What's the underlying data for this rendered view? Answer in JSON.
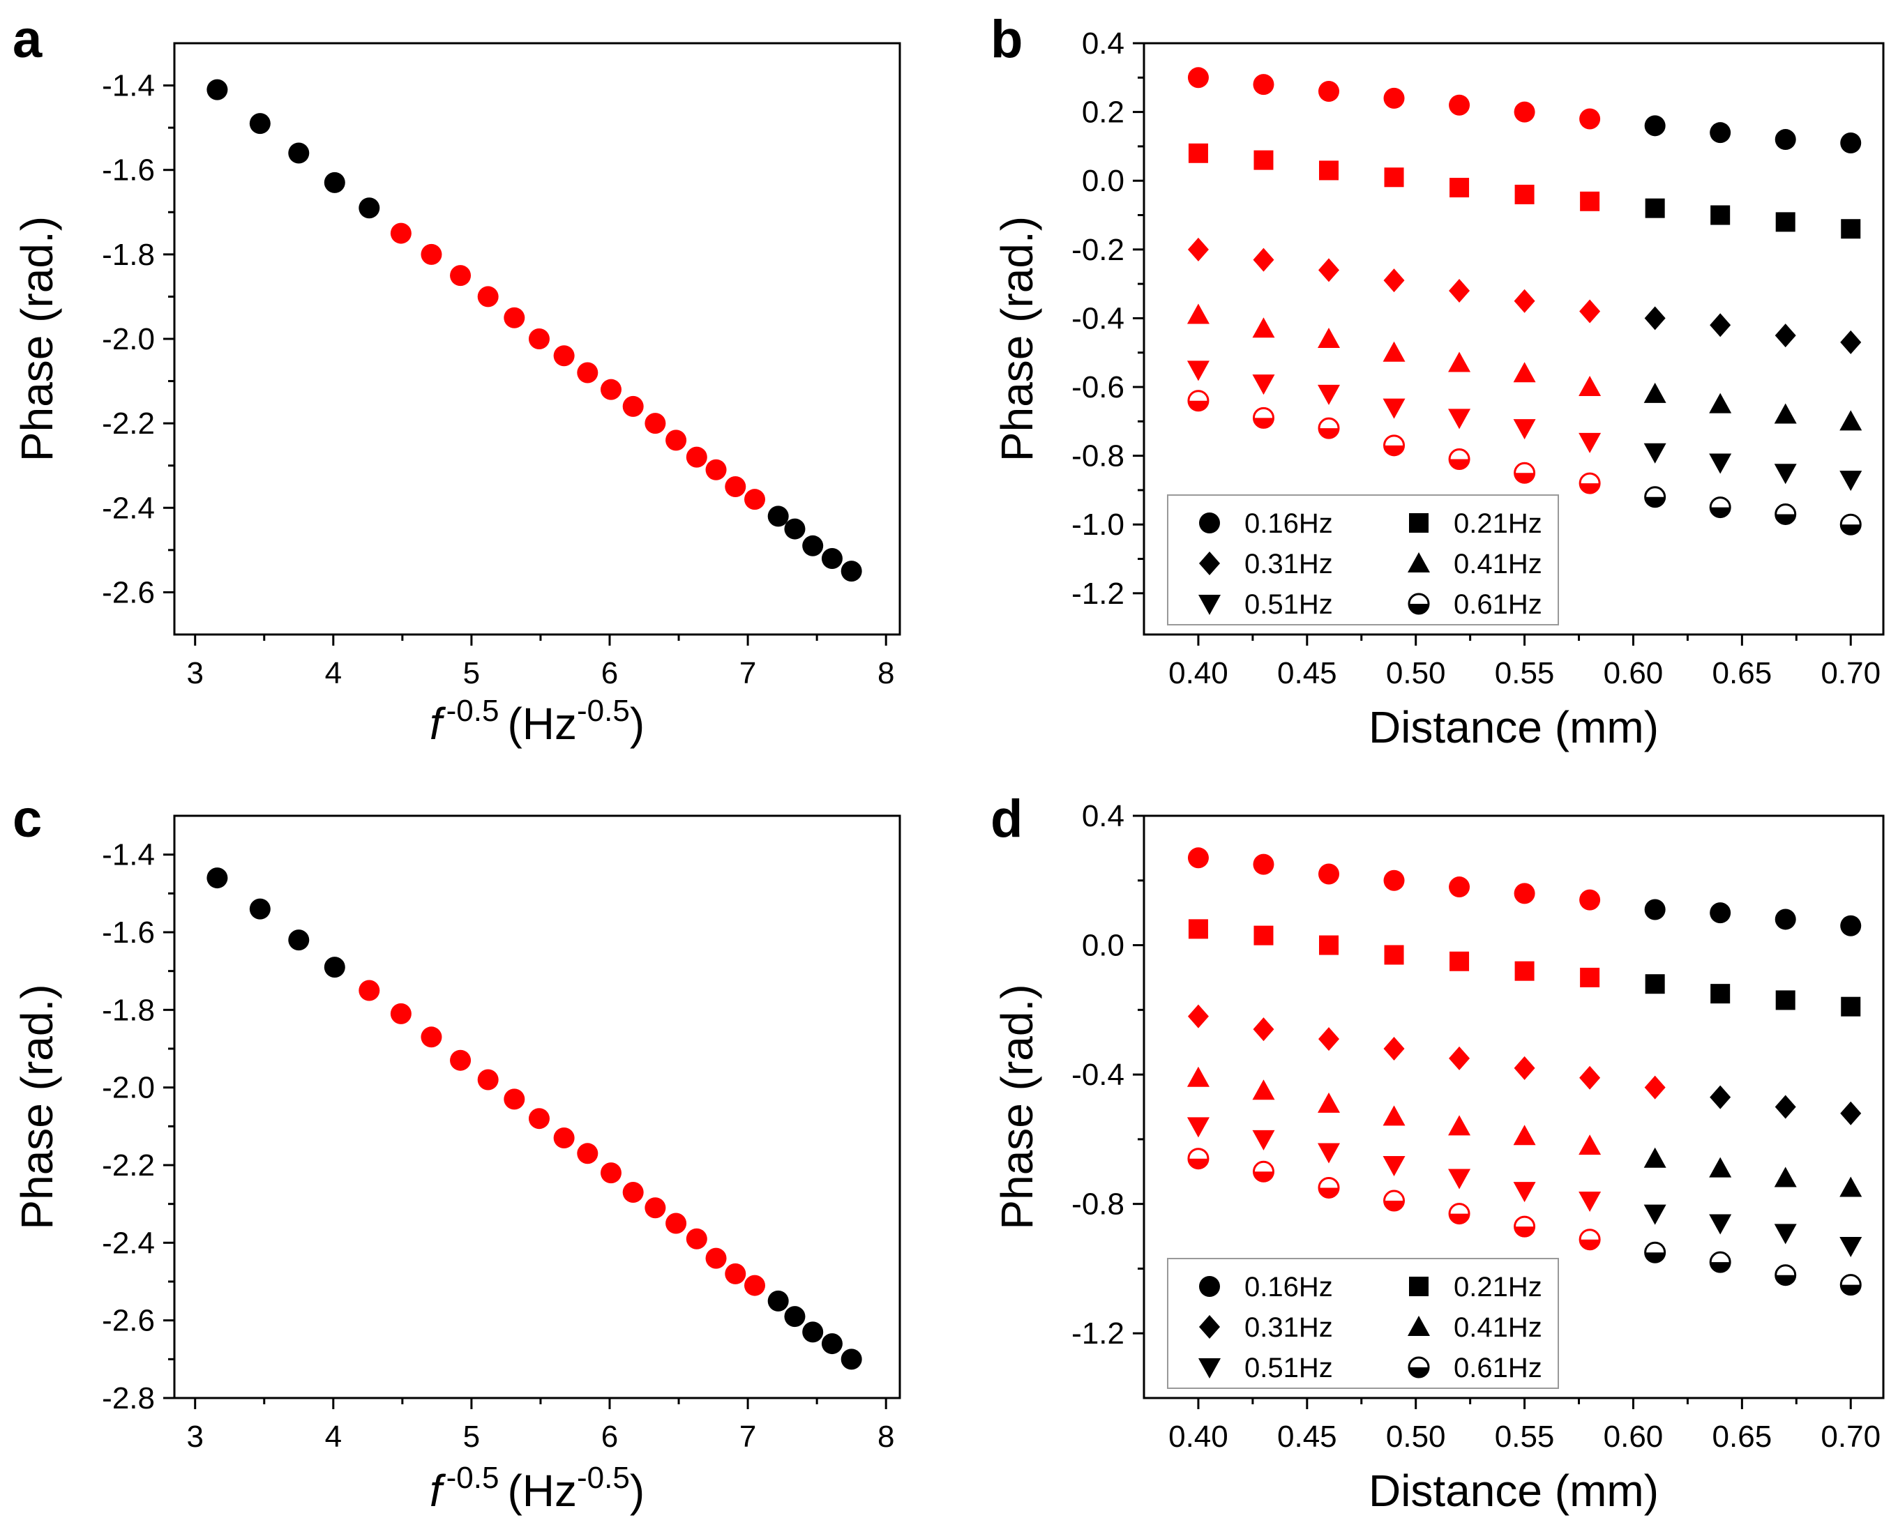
{
  "figure": {
    "colors": {
      "fixed": "#000000",
      "fitted": "#ff0000",
      "background": "#ffffff"
    }
  },
  "chart_data": [
    {
      "panel": "a",
      "type": "scatter",
      "xlabel_base": "f",
      "xlabel_exp": "-0.5",
      "xlabel_unit": "Hz",
      "xlabel_unit_exp": "-0.5",
      "ylabel": "Phase (rad.)",
      "xlim": [
        2.85,
        8.1
      ],
      "ylim": [
        -2.7,
        -1.3
      ],
      "xticks": [
        3,
        4,
        5,
        6,
        7,
        8
      ],
      "yticks": [
        -1.4,
        -1.6,
        -1.8,
        -2.0,
        -2.2,
        -2.4,
        -2.6
      ],
      "x": [
        3.16,
        3.47,
        3.75,
        4.01,
        4.26,
        4.49,
        4.71,
        4.92,
        5.12,
        5.31,
        5.49,
        5.67,
        5.84,
        6.01,
        6.17,
        6.33,
        6.48,
        6.63,
        6.77,
        6.91,
        7.05,
        7.22,
        7.34,
        7.47,
        7.61,
        7.75
      ],
      "y": [
        -1.41,
        -1.49,
        -1.56,
        -1.63,
        -1.69,
        -1.75,
        -1.8,
        -1.85,
        -1.9,
        -1.95,
        -2.0,
        -2.04,
        -2.08,
        -2.12,
        -2.16,
        -2.2,
        -2.24,
        -2.28,
        -2.31,
        -2.35,
        -2.38,
        -2.42,
        -2.45,
        -2.49,
        -2.52,
        -2.55
      ],
      "colors": [
        "fixed",
        "fixed",
        "fixed",
        "fixed",
        "fixed",
        "fitted",
        "fitted",
        "fitted",
        "fitted",
        "fitted",
        "fitted",
        "fitted",
        "fitted",
        "fitted",
        "fitted",
        "fitted",
        "fitted",
        "fitted",
        "fitted",
        "fitted",
        "fitted",
        "fixed",
        "fixed",
        "fixed",
        "fixed",
        "fixed"
      ]
    },
    {
      "panel": "b",
      "type": "scatter",
      "xlabel": "Distance (mm)",
      "ylabel": "Phase (rad.)",
      "xlim": [
        0.375,
        0.715
      ],
      "ylim": [
        -1.32,
        0.4
      ],
      "xticks": [
        "0.40",
        "0.45",
        "0.50",
        "0.55",
        "0.60",
        "0.65",
        "0.70"
      ],
      "yticks": [
        "0.4",
        "0.2",
        "0.0",
        "-0.2",
        "-0.4",
        "-0.6",
        "-0.8",
        "-1.0",
        "-1.2"
      ],
      "x": [
        0.4,
        0.43,
        0.46,
        0.49,
        0.52,
        0.55,
        0.58,
        0.61,
        0.64,
        0.67,
        0.7
      ],
      "fitted_count": 7,
      "series": [
        {
          "name": "0.16Hz",
          "marker": "circle",
          "values": [
            0.3,
            0.28,
            0.26,
            0.24,
            0.22,
            0.2,
            0.18,
            0.16,
            0.14,
            0.12,
            0.11
          ]
        },
        {
          "name": "0.21Hz",
          "marker": "square",
          "values": [
            0.08,
            0.06,
            0.03,
            0.01,
            -0.02,
            -0.04,
            -0.06,
            -0.08,
            -0.1,
            -0.12,
            -0.14
          ]
        },
        {
          "name": "0.31Hz",
          "marker": "diamond",
          "values": [
            -0.2,
            -0.23,
            -0.26,
            -0.29,
            -0.32,
            -0.35,
            -0.38,
            -0.4,
            -0.42,
            -0.45,
            -0.47
          ]
        },
        {
          "name": "0.41Hz",
          "marker": "triangle-up",
          "values": [
            -0.39,
            -0.43,
            -0.46,
            -0.5,
            -0.53,
            -0.56,
            -0.6,
            -0.62,
            -0.65,
            -0.68,
            -0.7
          ]
        },
        {
          "name": "0.51Hz",
          "marker": "triangle-down",
          "values": [
            -0.55,
            -0.59,
            -0.62,
            -0.66,
            -0.69,
            -0.72,
            -0.76,
            -0.79,
            -0.82,
            -0.85,
            -0.87
          ]
        },
        {
          "name": "0.61Hz",
          "marker": "half-circle",
          "values": [
            -0.64,
            -0.69,
            -0.72,
            -0.77,
            -0.81,
            -0.85,
            -0.88,
            -0.92,
            -0.95,
            -0.97,
            -1.0
          ]
        }
      ],
      "legend_position": "bottom-left"
    },
    {
      "panel": "c",
      "type": "scatter",
      "xlabel_base": "f",
      "xlabel_exp": "-0.5",
      "xlabel_unit": "Hz",
      "xlabel_unit_exp": "-0.5",
      "ylabel": "Phase (rad.)",
      "xlim": [
        2.85,
        8.1
      ],
      "ylim": [
        -2.8,
        -1.3
      ],
      "xticks": [
        3,
        4,
        5,
        6,
        7,
        8
      ],
      "yticks": [
        -1.4,
        -1.6,
        -1.8,
        -2.0,
        -2.2,
        -2.4,
        -2.6,
        -2.8
      ],
      "x": [
        3.16,
        3.47,
        3.75,
        4.01,
        4.26,
        4.49,
        4.71,
        4.92,
        5.12,
        5.31,
        5.49,
        5.67,
        5.84,
        6.01,
        6.17,
        6.33,
        6.48,
        6.63,
        6.77,
        6.91,
        7.05,
        7.22,
        7.34,
        7.47,
        7.61,
        7.75
      ],
      "y": [
        -1.46,
        -1.54,
        -1.62,
        -1.69,
        -1.75,
        -1.81,
        -1.87,
        -1.93,
        -1.98,
        -2.03,
        -2.08,
        -2.13,
        -2.17,
        -2.22,
        -2.27,
        -2.31,
        -2.35,
        -2.39,
        -2.44,
        -2.48,
        -2.51,
        -2.55,
        -2.59,
        -2.63,
        -2.66,
        -2.7
      ],
      "colors": [
        "fixed",
        "fixed",
        "fixed",
        "fixed",
        "fitted",
        "fitted",
        "fitted",
        "fitted",
        "fitted",
        "fitted",
        "fitted",
        "fitted",
        "fitted",
        "fitted",
        "fitted",
        "fitted",
        "fitted",
        "fitted",
        "fitted",
        "fitted",
        "fitted",
        "fixed",
        "fixed",
        "fixed",
        "fixed",
        "fixed"
      ]
    },
    {
      "panel": "d",
      "type": "scatter",
      "xlabel": "Distance (mm)",
      "ylabel": "Phase (rad.)",
      "xlim": [
        0.375,
        0.715
      ],
      "ylim": [
        -1.4,
        0.4
      ],
      "xticks": [
        "0.40",
        "0.45",
        "0.50",
        "0.55",
        "0.60",
        "0.65",
        "0.70"
      ],
      "yticks": [
        "0.4",
        "0.0",
        "-0.4",
        "-0.8",
        "-1.2"
      ],
      "x": [
        0.4,
        0.43,
        0.46,
        0.49,
        0.52,
        0.55,
        0.58,
        0.61,
        0.64,
        0.67,
        0.7
      ],
      "fitted_count": 7,
      "fitted_count_by_series": [
        7,
        7,
        8,
        7,
        7,
        7
      ],
      "series": [
        {
          "name": "0.16Hz",
          "marker": "circle",
          "values": [
            0.27,
            0.25,
            0.22,
            0.2,
            0.18,
            0.16,
            0.14,
            0.11,
            0.1,
            0.08,
            0.06
          ]
        },
        {
          "name": "0.21Hz",
          "marker": "square",
          "values": [
            0.05,
            0.03,
            0.0,
            -0.03,
            -0.05,
            -0.08,
            -0.1,
            -0.12,
            -0.15,
            -0.17,
            -0.19
          ]
        },
        {
          "name": "0.31Hz",
          "marker": "diamond",
          "values": [
            -0.22,
            -0.26,
            -0.29,
            -0.32,
            -0.35,
            -0.38,
            -0.41,
            -0.44,
            -0.47,
            -0.5,
            -0.52
          ]
        },
        {
          "name": "0.41Hz",
          "marker": "triangle-up",
          "values": [
            -0.41,
            -0.45,
            -0.49,
            -0.53,
            -0.56,
            -0.59,
            -0.62,
            -0.66,
            -0.69,
            -0.72,
            -0.75
          ]
        },
        {
          "name": "0.51Hz",
          "marker": "triangle-down",
          "values": [
            -0.56,
            -0.6,
            -0.64,
            -0.68,
            -0.72,
            -0.76,
            -0.79,
            -0.83,
            -0.86,
            -0.89,
            -0.93
          ]
        },
        {
          "name": "0.61Hz",
          "marker": "half-circle",
          "values": [
            -0.66,
            -0.7,
            -0.75,
            -0.79,
            -0.83,
            -0.87,
            -0.91,
            -0.95,
            -0.98,
            -1.02,
            -1.05
          ]
        }
      ],
      "legend_position": "bottom-left"
    }
  ]
}
